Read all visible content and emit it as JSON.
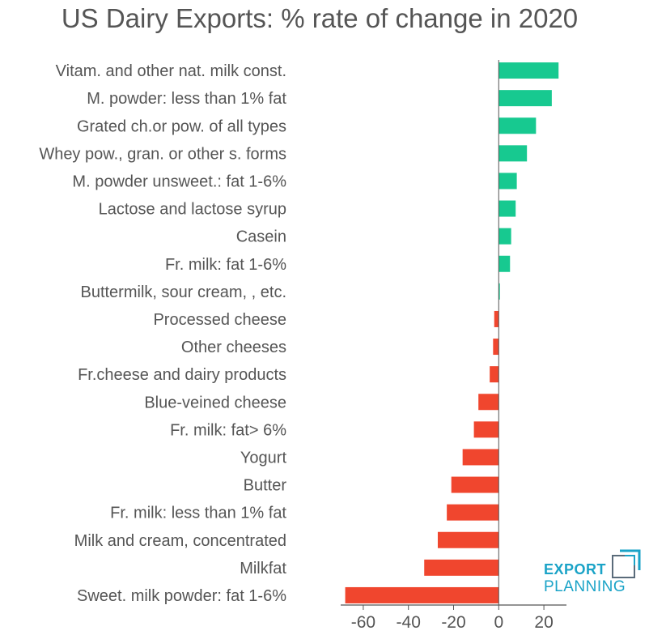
{
  "chart_data": {
    "type": "bar",
    "orientation": "horizontal",
    "title": "US Dairy Exports: % rate of change in 2020",
    "categories": [
      "Vitam. and other nat. milk const.",
      "M. powder: less than 1% fat",
      "Grated ch.or pow. of all types",
      "Whey pow., gran. or other s. forms",
      "M. powder unsweet.: fat 1-6%",
      "Lactose and lactose syrup",
      "Casein",
      "Fr. milk: fat 1-6%",
      "Buttermilk, sour cream, , etc.",
      "Processed cheese",
      "Other cheeses",
      "Fr.cheese and dairy products",
      "Blue-veined cheese",
      "Fr. milk: fat> 6%",
      "Yogurt",
      "Butter",
      "Fr. milk: less than 1% fat",
      "Milk and cream, concentrated",
      "Milkfat",
      "Sweet. milk powder: fat 1-6%"
    ],
    "values": [
      26.5,
      23.5,
      16.5,
      12.5,
      8,
      7.5,
      5.5,
      5,
      0.5,
      -2,
      -2.5,
      -4,
      -9,
      -11,
      -16,
      -21,
      -23,
      -27,
      -33,
      -68
    ],
    "xlim": [
      -70,
      30
    ],
    "xticks": [
      -60,
      -40,
      -20,
      0,
      20
    ],
    "xtick_labels": [
      "-60",
      "-40",
      "-20",
      "0",
      "20"
    ],
    "positive_color": "#17c990",
    "negative_color": "#f0462e",
    "grid": false
  },
  "logo": {
    "line1": "EXPORT",
    "line2": "PLANNING",
    "color": "#1aa3c7"
  }
}
